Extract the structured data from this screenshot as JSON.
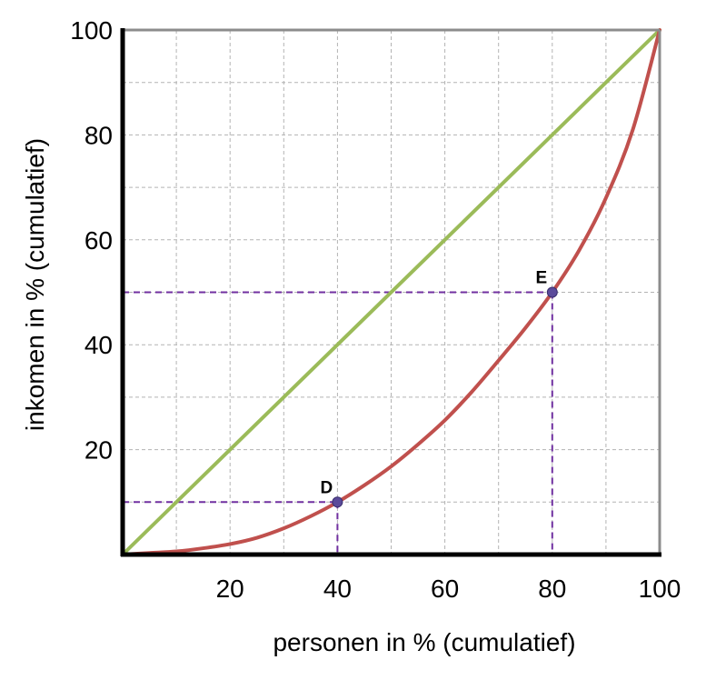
{
  "chart_data": {
    "type": "line",
    "xlabel": "personen in % (cumulatief)",
    "ylabel": "inkomen in % (cumulatief)",
    "xlim": [
      0,
      100
    ],
    "ylim": [
      0,
      100
    ],
    "x_ticks": [
      20,
      40,
      60,
      80,
      100
    ],
    "y_ticks": [
      20,
      40,
      60,
      80,
      100
    ],
    "grid": true,
    "grid_step": 10,
    "series": [
      {
        "color": "#9bbb59",
        "x": [
          0,
          100
        ],
        "y": [
          0,
          100
        ]
      },
      {
        "color": "#c0504d",
        "x": [
          0,
          5,
          10,
          15,
          20,
          25,
          30,
          35,
          40,
          45,
          50,
          55,
          60,
          65,
          70,
          75,
          80,
          85,
          90,
          95,
          100
        ],
        "y": [
          0,
          0.3,
          0.6,
          1.2,
          2,
          3.2,
          5,
          7.3,
          10,
          13.2,
          16.8,
          21,
          25.6,
          31,
          37,
          43.2,
          50,
          58,
          68,
          81,
          100
        ]
      }
    ],
    "points": [
      {
        "label": "D",
        "x": 40,
        "y": 10
      },
      {
        "label": "E",
        "x": 80,
        "y": 50
      }
    ],
    "reference_line_color": "#7030a0",
    "point_color": "#5b4a9a"
  }
}
